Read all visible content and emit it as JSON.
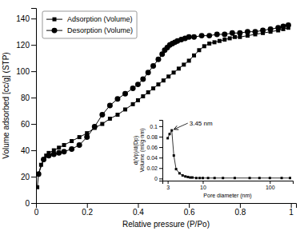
{
  "chart_data": [
    {
      "type": "line",
      "xlabel": "Relative pressure (P/Po)",
      "ylabel": "Volume adsorbed [cc/g] (STP)",
      "series": [
        {
          "name": "Adsorption (Volume)",
          "color": "black",
          "marker": "square",
          "x": [
            0.005,
            0.01,
            0.02,
            0.03,
            0.04,
            0.05,
            0.07,
            0.09,
            0.11,
            0.14,
            0.17,
            0.2,
            0.23,
            0.26,
            0.29,
            0.32,
            0.35,
            0.38,
            0.4,
            0.42,
            0.44,
            0.46,
            0.48,
            0.5,
            0.52,
            0.54,
            0.56,
            0.58,
            0.6,
            0.62,
            0.64,
            0.66,
            0.68,
            0.7,
            0.72,
            0.74,
            0.76,
            0.78,
            0.8,
            0.83,
            0.86,
            0.89,
            0.92,
            0.95,
            0.97,
            0.99
          ],
          "values": [
            12,
            22,
            29,
            33,
            36,
            38,
            40,
            42,
            44,
            47,
            50,
            53,
            57,
            60,
            64,
            67,
            71,
            75,
            78,
            81,
            84,
            87,
            90,
            93,
            96,
            99,
            102,
            105,
            108,
            112,
            116,
            119,
            121,
            122,
            123,
            124,
            125,
            126,
            126,
            127,
            128,
            129,
            130,
            131,
            132,
            133
          ]
        },
        {
          "name": "Desorption (Volume)",
          "color": "black",
          "marker": "circle",
          "x": [
            0.99,
            0.97,
            0.95,
            0.92,
            0.89,
            0.86,
            0.83,
            0.8,
            0.77,
            0.74,
            0.71,
            0.68,
            0.65,
            0.62,
            0.6,
            0.585,
            0.57,
            0.555,
            0.545,
            0.535,
            0.525,
            0.515,
            0.505,
            0.495,
            0.48,
            0.46,
            0.44,
            0.42,
            0.4,
            0.38,
            0.35,
            0.32,
            0.29,
            0.26,
            0.23,
            0.2,
            0.17,
            0.14,
            0.11,
            0.09,
            0.07,
            0.05,
            0.03,
            0.01
          ],
          "values": [
            135,
            134,
            133,
            132,
            131,
            130,
            130,
            129,
            129,
            128,
            128,
            127,
            127,
            126,
            126,
            125,
            124,
            123,
            122,
            121,
            120,
            118,
            116,
            113,
            109,
            104,
            99,
            94,
            90,
            87,
            83,
            79,
            74,
            67,
            58,
            50,
            44,
            41,
            39,
            38,
            37,
            36,
            33,
            22
          ]
        }
      ],
      "xlim": [
        0.0,
        1.02
      ],
      "ylim": [
        0,
        148
      ],
      "xticks": [
        0.0,
        0.2,
        0.4,
        0.6,
        0.8,
        1.0
      ],
      "yticks": [
        0,
        20,
        40,
        60,
        80,
        100,
        120,
        140
      ],
      "legend": "upper left",
      "grid": false
    },
    {
      "type": "line",
      "xlabel": "Pore diameter (nm)",
      "ylabel": "d(Vp)/d(Dp)\nVolume (ml/g·nm)",
      "log": "x",
      "series": [
        {
          "color": "black",
          "marker": "square",
          "x": [
            3.0,
            3.2,
            3.45,
            3.7,
            4.0,
            4.5,
            5.0,
            5.5,
            6.0,
            6.5,
            7.0,
            8.0,
            9.0,
            10.0,
            12.0,
            15.0,
            20.0,
            30.0,
            50.0,
            70.0,
            100.0,
            150.0,
            200.0
          ],
          "values": [
            0.077,
            0.085,
            0.092,
            0.044,
            0.018,
            0.01,
            0.006,
            0.004,
            0.003,
            0.002,
            0.002,
            0.001,
            0.001,
            0.001,
            0.001,
            0.001,
            0.001,
            0.001,
            0.001,
            0.001,
            0.001,
            0.001,
            0.001
          ]
        }
      ],
      "xlim": [
        2.5,
        220.0
      ],
      "ylim": [
        -0.004,
        0.112
      ],
      "xticks": [
        3,
        10,
        100
      ],
      "yticks": [
        0,
        0.02,
        0.04,
        0.06,
        0.08,
        0.1
      ],
      "annotations": [
        {
          "text": "3.45 nm",
          "x": 3.45,
          "y": 0.092
        }
      ],
      "grid": false
    }
  ]
}
